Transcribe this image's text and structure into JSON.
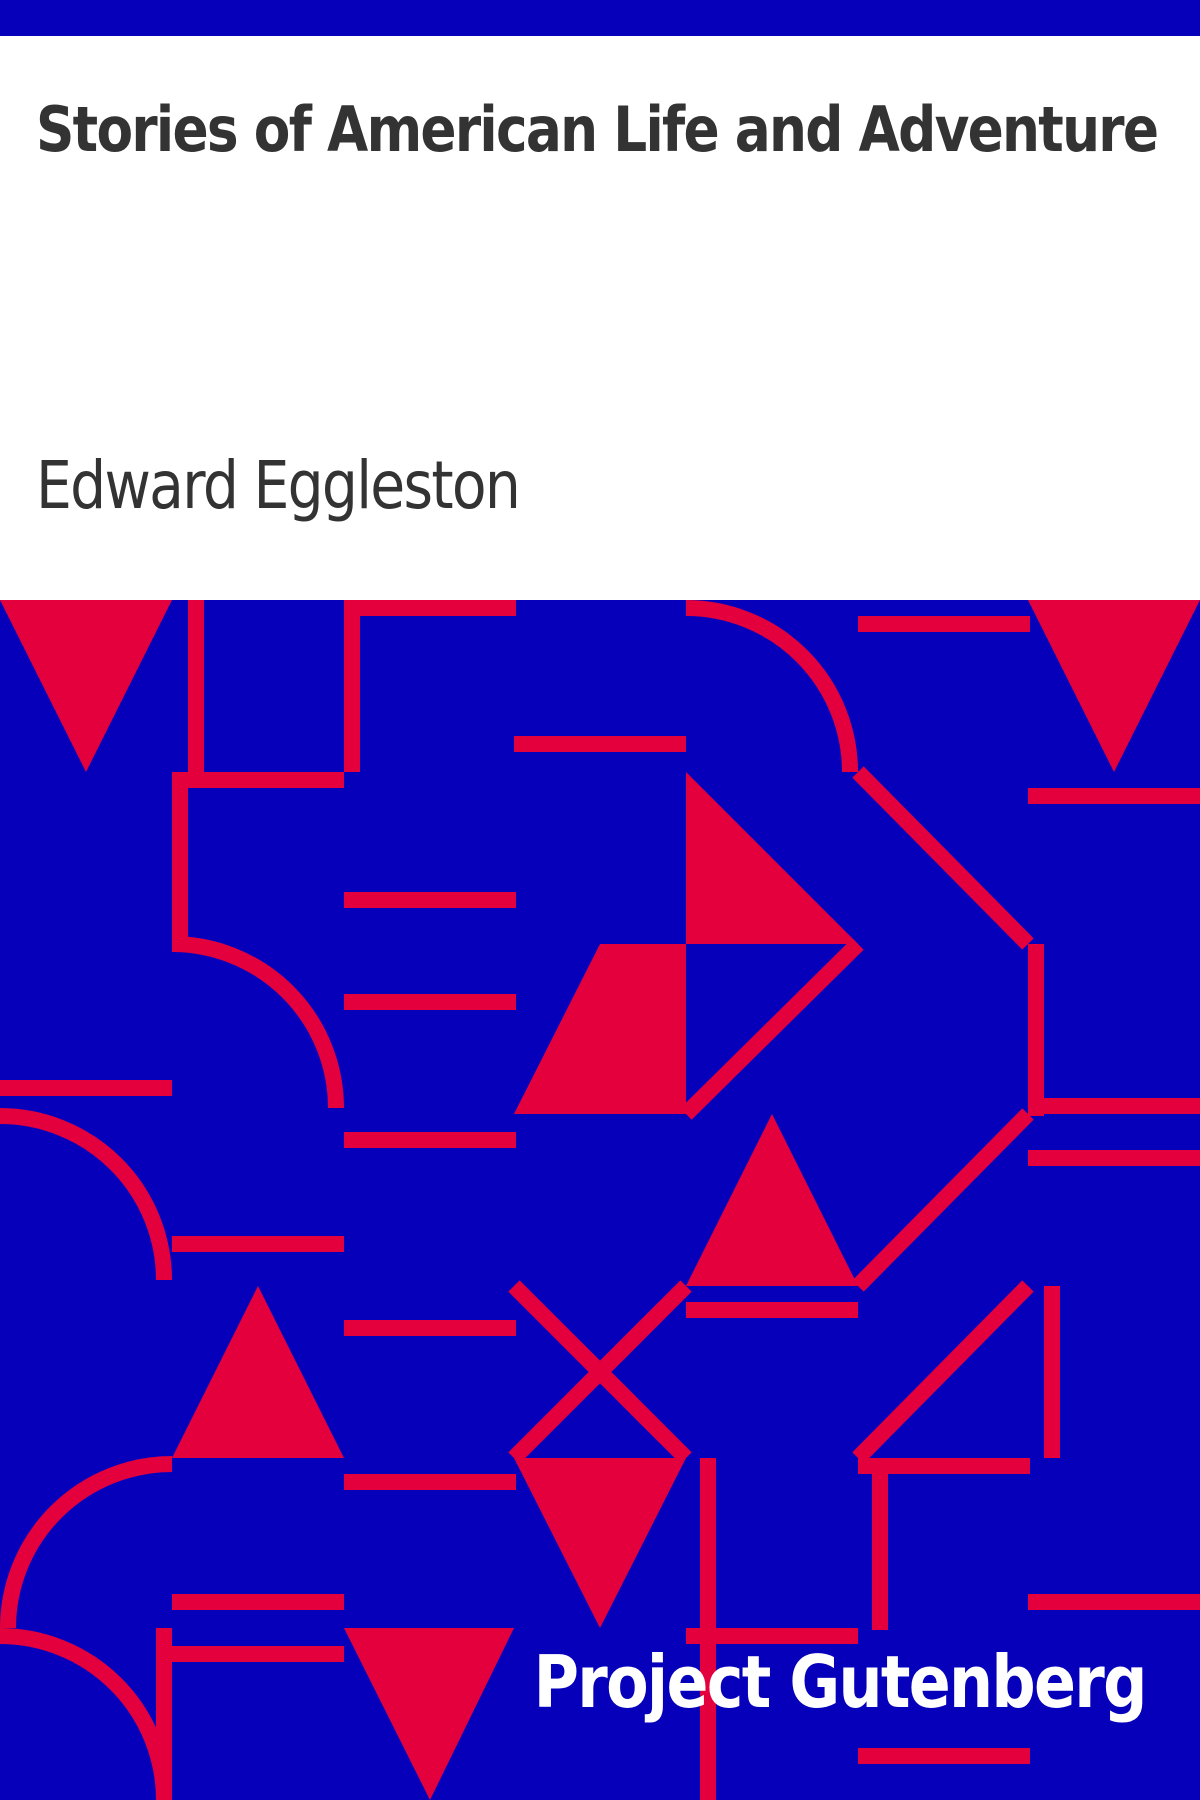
{
  "book": {
    "title": "Stories of American Life and Adventure",
    "author": "Edward Eggleston",
    "publisher": "Project Gutenberg"
  },
  "colors": {
    "background": "#ffffff",
    "text": "#333333",
    "pattern_background": "#0700bb",
    "pattern_accent": "#e4003d",
    "publisher_text": "#ffffff"
  }
}
